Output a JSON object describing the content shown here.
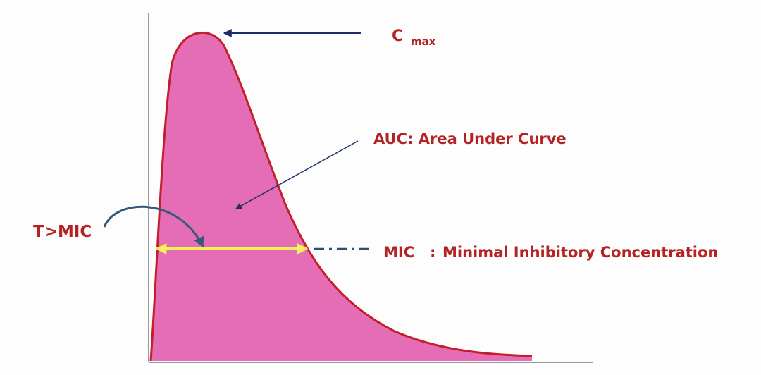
{
  "labels": {
    "cmax_main": "C",
    "cmax_sub": "max",
    "auc": "AUC: Area Under Curve",
    "t_mic": "T>MIC",
    "mic_abbrev": "MIC",
    "mic_separator": ":",
    "mic_definition": "Minimal Inhibitory Concentration"
  },
  "colors": {
    "curve_fill": "#e56db6",
    "curve_stroke": "#c21f2a",
    "label_text": "#b42323",
    "pointer_arrow": "#1d2f66",
    "t_mic_arrow": "#34597a",
    "mic_double_arrow": "#f5f05a",
    "mic_dash_line": "#2d4d73",
    "axis": "#9a9a9a"
  }
}
